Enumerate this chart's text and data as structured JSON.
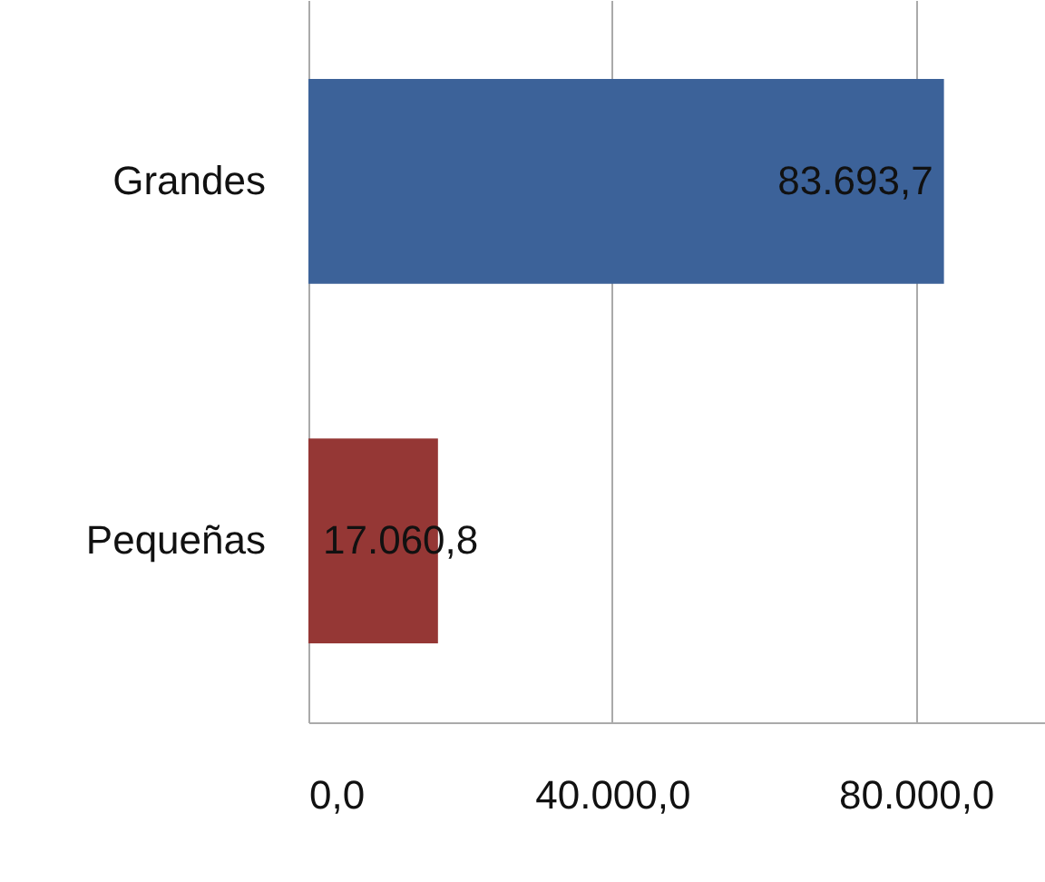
{
  "chart_data": {
    "type": "bar",
    "orientation": "horizontal",
    "categories": [
      "Grandes",
      "Pequeñas"
    ],
    "values": [
      83693.7,
      17060.8
    ],
    "colors": [
      "#3c6299",
      "#953735"
    ],
    "value_labels": [
      "83.693,7",
      "17.060,8"
    ],
    "xlim": [
      0,
      97000
    ],
    "xticks": [
      {
        "value": 0,
        "label": "0,0"
      },
      {
        "value": 40000,
        "label": "40.000,0"
      },
      {
        "value": 80000,
        "label": "80.000,0"
      }
    ],
    "grid": "x"
  }
}
